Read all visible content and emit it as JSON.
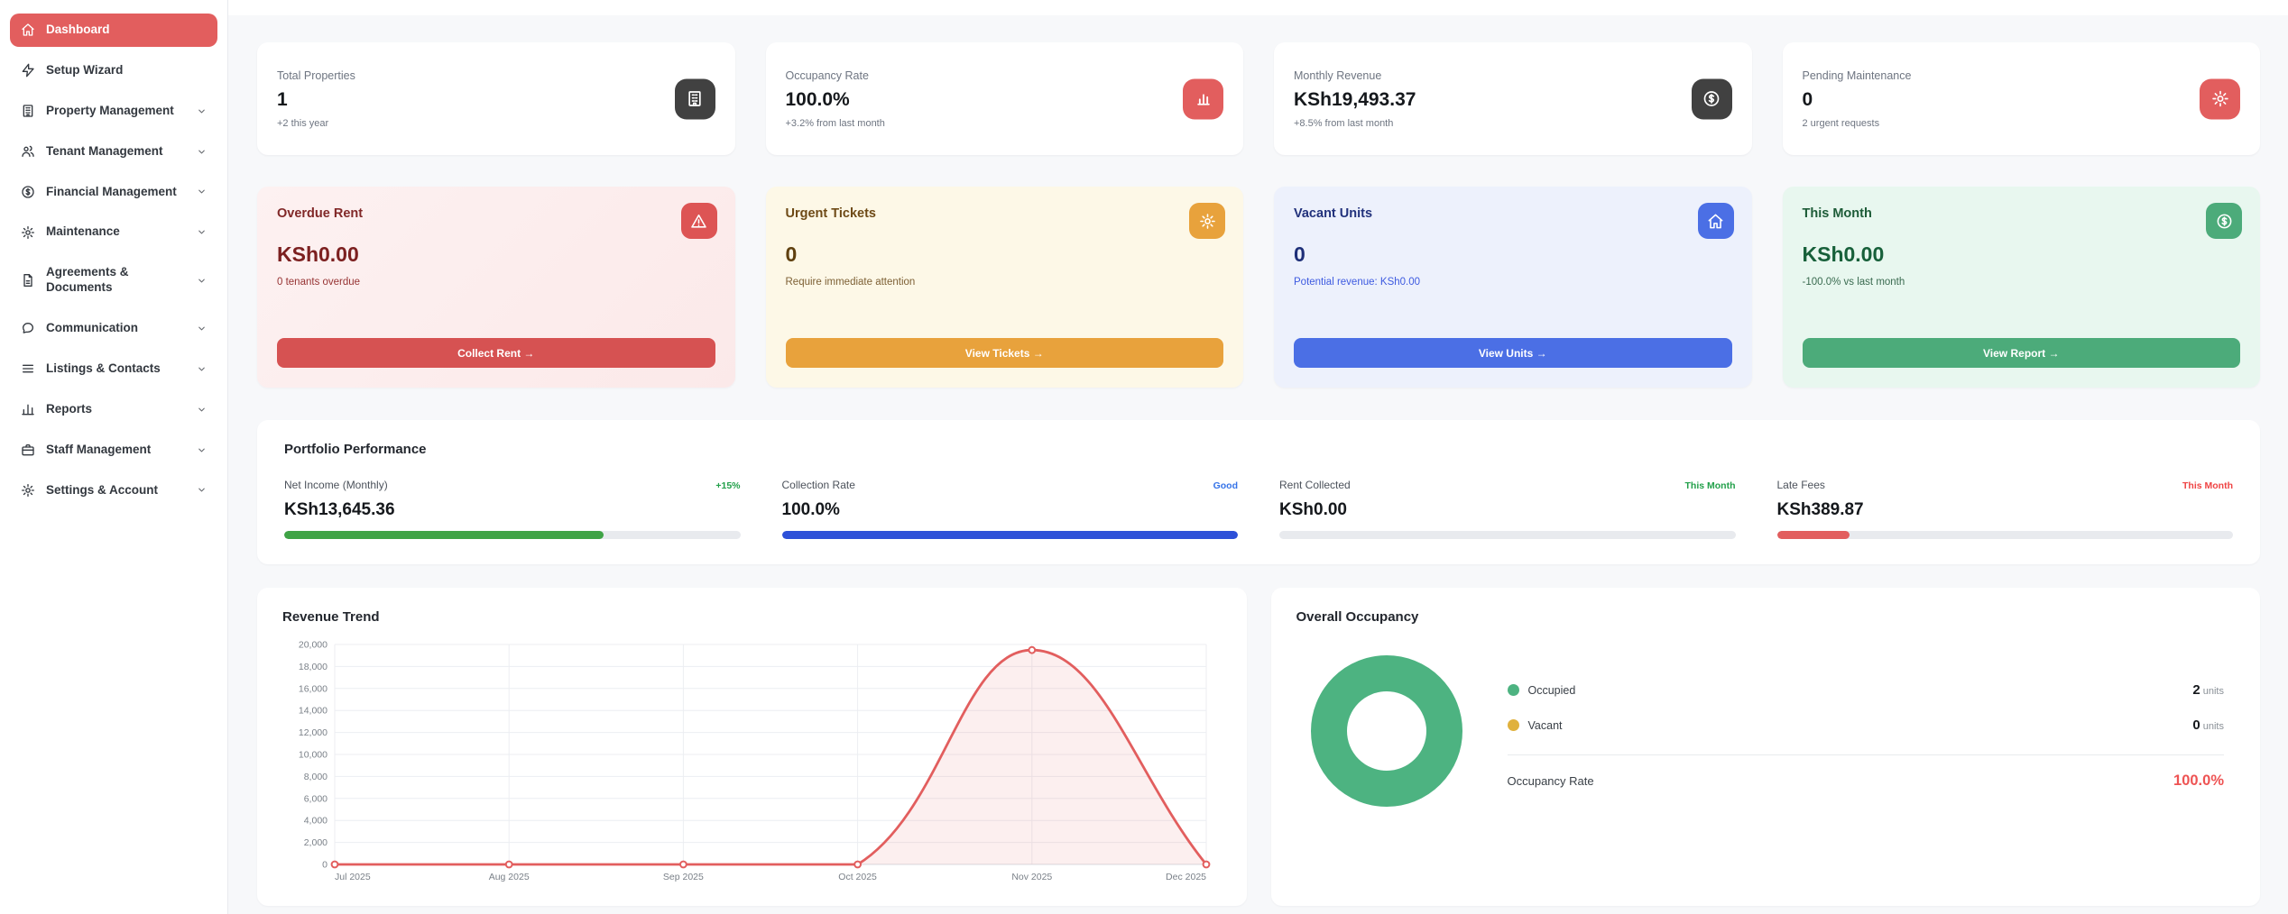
{
  "colors": {
    "accent_red": "#e25e5e",
    "dark_icon": "#414141",
    "orange": "#e8a23c",
    "blue": "#4b6fe5",
    "green": "#4cab7a",
    "bar_green": "#3fa346",
    "bar_blue": "#2d50d8",
    "bar_red": "#e25e5e",
    "bar_track": "#e8eaee",
    "page_bg": "#f7f8fa",
    "rate_red": "#ee5353"
  },
  "sidebar": {
    "items": [
      {
        "label": "Dashboard",
        "icon": "home-icon",
        "active": true,
        "expandable": false
      },
      {
        "label": "Setup Wizard",
        "icon": "lightning-icon",
        "active": false,
        "expandable": false
      },
      {
        "label": "Property Management",
        "icon": "building-icon",
        "active": false,
        "expandable": true
      },
      {
        "label": "Tenant Management",
        "icon": "users-icon",
        "active": false,
        "expandable": true
      },
      {
        "label": "Financial Management",
        "icon": "dollar-circle-icon",
        "active": false,
        "expandable": true
      },
      {
        "label": "Maintenance",
        "icon": "gear-icon",
        "active": false,
        "expandable": true
      },
      {
        "label": "Agreements & Documents",
        "icon": "document-icon",
        "active": false,
        "expandable": true
      },
      {
        "label": "Communication",
        "icon": "chat-icon",
        "active": false,
        "expandable": true
      },
      {
        "label": "Listings & Contacts",
        "icon": "list-icon",
        "active": false,
        "expandable": true
      },
      {
        "label": "Reports",
        "icon": "bar-chart-icon",
        "active": false,
        "expandable": true
      },
      {
        "label": "Staff Management",
        "icon": "briefcase-icon",
        "active": false,
        "expandable": true
      },
      {
        "label": "Settings & Account",
        "icon": "gear-icon",
        "active": false,
        "expandable": true
      }
    ]
  },
  "stats": {
    "cards": [
      {
        "label": "Total Properties",
        "value": "1",
        "sub": "+2 this year",
        "icon": "building-icon",
        "icon_bg": "#414141"
      },
      {
        "label": "Occupancy Rate",
        "value": "100.0%",
        "sub": "+3.2% from last month",
        "icon": "bar-chart-icon",
        "icon_bg": "#e25e5e"
      },
      {
        "label": "Monthly Revenue",
        "value": "KSh19,493.37",
        "sub": "+8.5% from last month",
        "icon": "dollar-circle-icon",
        "icon_bg": "#414141"
      },
      {
        "label": "Pending Maintenance",
        "value": "0",
        "sub": "2 urgent requests",
        "icon": "gear-icon",
        "icon_bg": "#e25e5e"
      }
    ]
  },
  "actions": {
    "cards": [
      {
        "title": "Overdue Rent",
        "value": "KSh0.00",
        "sub": "0 tenants overdue",
        "button": "Collect Rent →",
        "icon": "warning-icon",
        "theme": "red"
      },
      {
        "title": "Urgent Tickets",
        "value": "0",
        "sub": "Require immediate attention",
        "button": "View Tickets →",
        "icon": "gear-icon",
        "theme": "amber"
      },
      {
        "title": "Vacant Units",
        "value": "0",
        "sub": "Potential revenue: KSh0.00",
        "button": "View Units →",
        "icon": "home-icon",
        "theme": "blue"
      },
      {
        "title": "This Month",
        "value": "KSh0.00",
        "sub": "-100.0% vs last month",
        "button": "View Report →",
        "icon": "dollar-circle-icon",
        "theme": "green"
      }
    ]
  },
  "portfolio": {
    "title": "Portfolio Performance",
    "metrics": [
      {
        "label": "Net Income (Monthly)",
        "badge": "+15%",
        "badge_color": "#22a04a",
        "value": "KSh13,645.36",
        "bar_pct": 70,
        "bar_color": "#3fa346"
      },
      {
        "label": "Collection Rate",
        "badge": "Good",
        "badge_color": "#3573e8",
        "value": "100.0%",
        "bar_pct": 100,
        "bar_color": "#2d50d8"
      },
      {
        "label": "Rent Collected",
        "badge": "This Month",
        "badge_color": "#22a04a",
        "value": "KSh0.00",
        "bar_pct": 0,
        "bar_color": "#3fa346"
      },
      {
        "label": "Late Fees",
        "badge": "This Month",
        "badge_color": "#ef4444",
        "value": "KSh389.87",
        "bar_pct": 16,
        "bar_color": "#e25e5e"
      }
    ]
  },
  "occupancy": {
    "legend": [
      {
        "label": "Occupied",
        "value": "2",
        "unit": "units",
        "color": "#4db381"
      },
      {
        "label": "Vacant",
        "value": "0",
        "unit": "units",
        "color": "#e0b13d"
      }
    ],
    "rate_label": "Occupancy Rate",
    "rate_value": "100.0%"
  },
  "chart_data": [
    {
      "type": "line",
      "title": "Revenue Trend",
      "x": [
        "Jul 2025",
        "Aug 2025",
        "Sep 2025",
        "Oct 2025",
        "Nov 2025",
        "Dec 2025"
      ],
      "series": [
        {
          "name": "Revenue",
          "values": [
            0,
            0,
            0,
            0,
            19493.37,
            0
          ]
        }
      ],
      "xlabel": "",
      "ylabel": "",
      "ylim": [
        0,
        20000
      ],
      "ytick_step": 2000,
      "grid": true,
      "legend_position": "none",
      "line_color": "#e25e5e",
      "fill_color": "rgba(226,94,94,0.10)"
    },
    {
      "type": "pie",
      "subtype": "doughnut",
      "title": "Overall Occupancy",
      "labels": [
        "Occupied",
        "Vacant"
      ],
      "values": [
        2,
        0
      ],
      "colors": [
        "#4db381",
        "#e0b13d"
      ],
      "legend_position": "right"
    }
  ]
}
